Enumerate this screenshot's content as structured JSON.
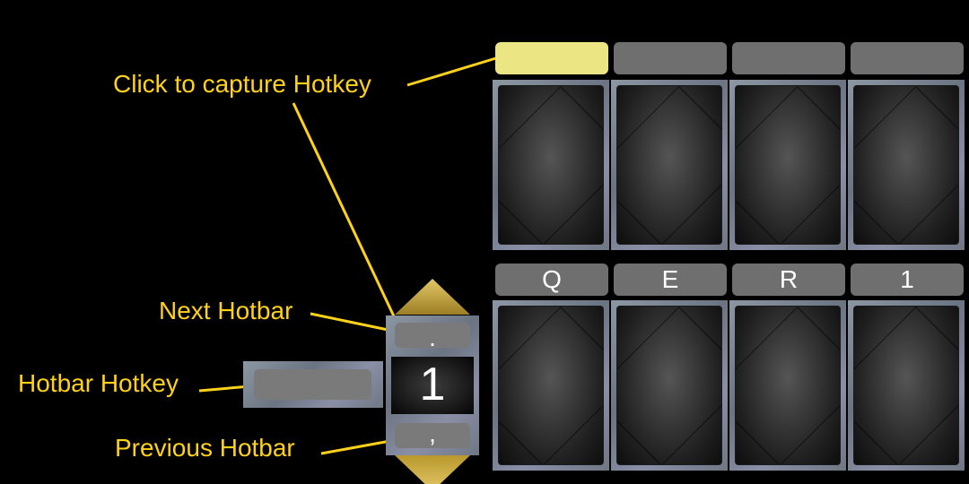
{
  "annotations": {
    "capture_hotkey": "Click to capture Hotkey",
    "next_hotbar": "Next Hotbar",
    "hotbar_hotkey": "Hotbar Hotkey",
    "previous_hotbar": "Previous Hotbar"
  },
  "top_row": {
    "hotkeys": [
      "",
      "",
      "",
      ""
    ],
    "active_index": 0
  },
  "bottom_row": {
    "hotkeys": [
      "Q",
      "E",
      "R",
      "1"
    ]
  },
  "hotbar": {
    "next_key": ".",
    "previous_key": ",",
    "number": "1",
    "hotkey": ""
  },
  "colors": {
    "annotation": "#FFD21A",
    "active_hotkey": "#ece584",
    "hotkey_button": "#6f6f6f",
    "arrow_gold": "#c9a93a"
  }
}
